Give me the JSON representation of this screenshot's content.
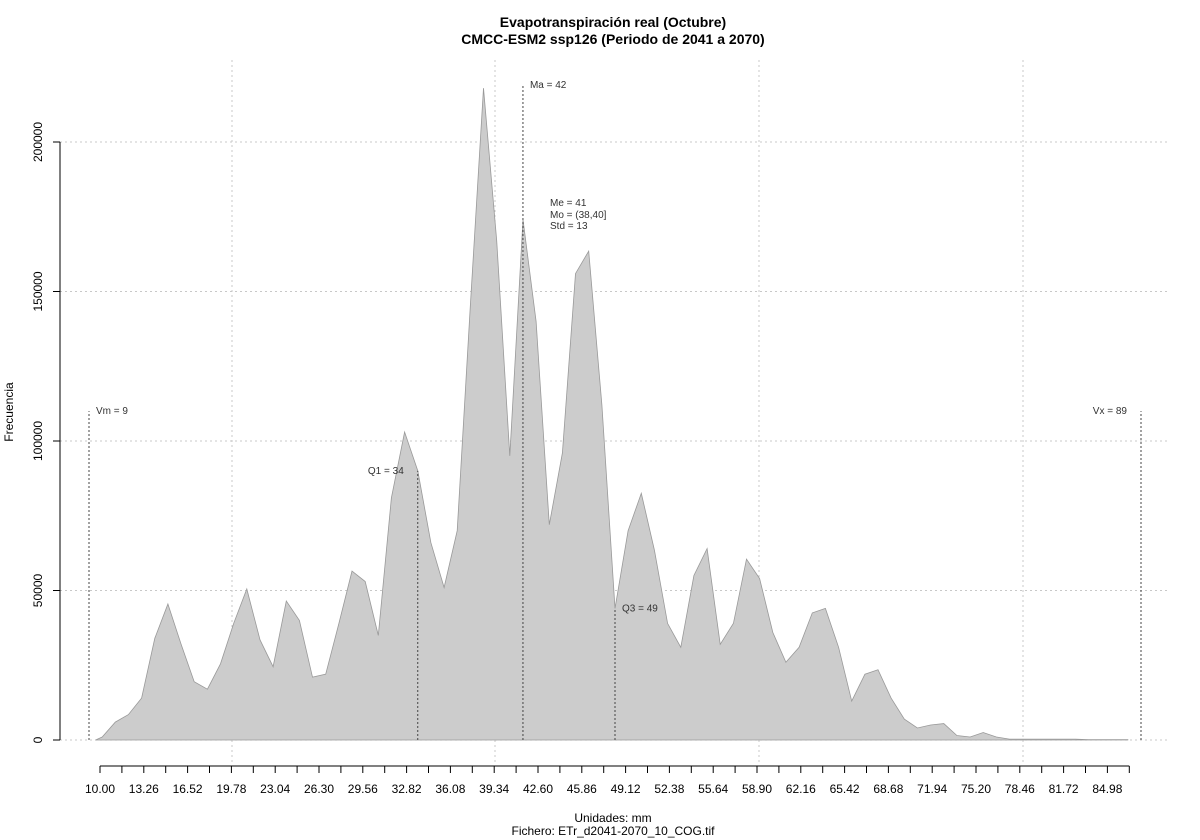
{
  "chart_data": {
    "type": "area",
    "title": "Evapotranspiración real (Octubre)",
    "subtitle": "CMCC-ESM2 ssp126 (Periodo de 2041 a 2070)",
    "xlabel": "Unidades: mm",
    "xlabel2": "Fichero: ETr_d2041-2070_10_COG.tif",
    "ylabel": "Frecuencia",
    "xlim": [
      9,
      89
    ],
    "ylim": [
      0,
      220000
    ],
    "grid": true,
    "fill_color": "#cccccc",
    "line_color": "#999999",
    "x_ticks": [
      "10.00",
      "13.26",
      "16.52",
      "19.78",
      "23.04",
      "26.30",
      "29.56",
      "32.82",
      "36.08",
      "39.34",
      "42.60",
      "45.86",
      "49.12",
      "52.38",
      "55.64",
      "58.90",
      "62.16",
      "65.42",
      "68.68",
      "71.94",
      "75.20",
      "78.46",
      "81.72",
      "84.98"
    ],
    "y_ticks": [
      "0",
      "50000",
      "100000",
      "150000",
      "200000"
    ],
    "x": [
      9.5,
      10,
      11,
      12,
      13,
      14,
      15,
      16,
      17,
      18,
      19,
      20,
      21,
      22,
      23,
      24,
      25,
      26,
      27,
      28,
      29,
      30,
      31,
      32,
      33,
      34,
      35,
      36,
      37,
      38,
      39,
      40,
      41,
      42,
      43,
      44,
      45,
      46,
      47,
      48,
      49,
      50,
      51,
      52,
      53,
      54,
      55,
      56,
      57,
      58,
      59,
      60,
      61,
      62,
      63,
      64,
      65,
      66,
      67,
      68,
      69,
      70,
      71,
      72,
      73,
      74,
      75,
      76,
      77,
      78,
      79,
      80,
      81,
      82,
      83,
      84,
      85,
      86,
      87,
      88
    ],
    "y": [
      0,
      1000,
      6000,
      8500,
      14000,
      34000,
      45500,
      32000,
      19500,
      17000,
      25500,
      39000,
      50500,
      33500,
      24500,
      46500,
      40000,
      21000,
      22000,
      39000,
      56500,
      53000,
      35000,
      81000,
      103000,
      90000,
      66000,
      51000,
      70000,
      145000,
      218000,
      167000,
      95000,
      174000,
      140000,
      72000,
      96000,
      156000,
      163500,
      112000,
      44000,
      70000,
      82500,
      63500,
      39000,
      31000,
      55000,
      64000,
      32000,
      39000,
      60500,
      54000,
      36000,
      26000,
      31000,
      42500,
      44000,
      31000,
      13000,
      22000,
      23500,
      14000,
      7000,
      4000,
      5000,
      5500,
      1500,
      1000,
      2500,
      1000,
      300,
      300,
      300,
      300,
      300,
      300,
      100,
      100,
      100,
      100
    ],
    "markers": [
      {
        "label": "Vm = 9",
        "x": 9,
        "y_top": 110000,
        "anchor": "start"
      },
      {
        "label": "Q1 = 34",
        "x": 34,
        "y_top": 90000,
        "anchor": "end"
      },
      {
        "label": "Ma = 42",
        "x": 42,
        "y_top": 219000,
        "anchor": "start"
      },
      {
        "label": "Q3 = 49",
        "x": 49,
        "y_top": 44000,
        "anchor": "start"
      },
      {
        "label": "Vx = 89",
        "x": 89,
        "y_top": 110000,
        "anchor": "end"
      }
    ],
    "stats": [
      "Me = 41",
      "Mo = (38,40]",
      "Std = 13"
    ]
  }
}
